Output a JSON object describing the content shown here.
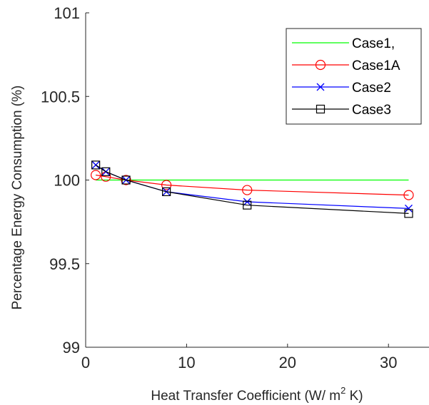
{
  "chart_data": {
    "type": "line",
    "title": "",
    "xlabel": "Heat Transfer Coefficient (W/ m",
    "xlabel_superscript": "2",
    "xlabel_suffix": " K)",
    "ylabel": "Percentage Energy Consumption (%)",
    "xlim": [
      0,
      32
    ],
    "ylim": [
      99,
      101
    ],
    "x_ticks": [
      0,
      10,
      20,
      30
    ],
    "y_ticks": [
      99,
      99.5,
      100,
      100.5,
      101
    ],
    "x_tick_labels": [
      "0",
      "10",
      "20",
      "30"
    ],
    "y_tick_labels": [
      "99",
      "99.5",
      "100",
      "100.5",
      "101"
    ],
    "grid": false,
    "legend_position": "top-right",
    "series": [
      {
        "name": "Case1,",
        "color": "#00ff00",
        "marker": "none",
        "x": [
          1,
          2,
          4,
          8,
          16,
          32
        ],
        "y": [
          100,
          100,
          100,
          100,
          100,
          100
        ]
      },
      {
        "name": "Case1A",
        "color": "#ff0000",
        "marker": "circle",
        "x": [
          1,
          2,
          4,
          8,
          16,
          32
        ],
        "y": [
          100.03,
          100.02,
          100,
          99.97,
          99.94,
          99.91
        ]
      },
      {
        "name": "Case2",
        "color": "#0000ff",
        "marker": "x",
        "x": [
          1,
          2,
          4,
          8,
          16,
          32
        ],
        "y": [
          100.09,
          100.05,
          100,
          99.93,
          99.87,
          99.83
        ]
      },
      {
        "name": "Case3",
        "color": "#000000",
        "marker": "square",
        "x": [
          1,
          2,
          4,
          8,
          16,
          32
        ],
        "y": [
          100.09,
          100.05,
          100,
          99.93,
          99.85,
          99.8
        ]
      }
    ]
  }
}
